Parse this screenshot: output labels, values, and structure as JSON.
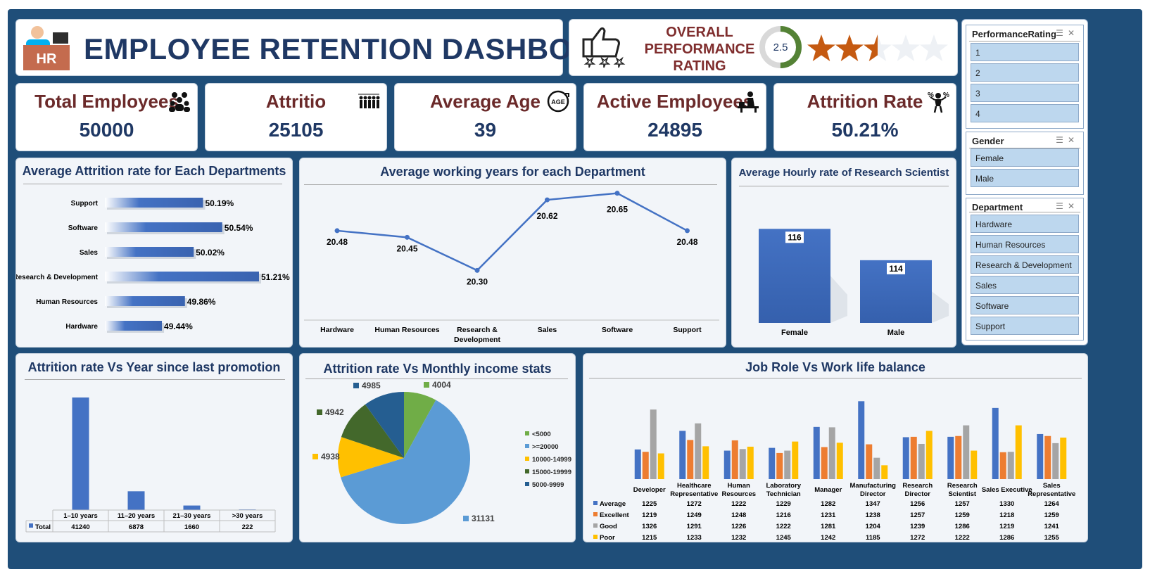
{
  "header": {
    "title": "EMPLOYEE RETENTION DASHBOARD",
    "logo_text": "HR"
  },
  "performance": {
    "title_lines": [
      "OVERALL",
      "PERFORMANCE",
      "RATING"
    ],
    "rating": "2.5",
    "rating_value": 2.5,
    "rating_max": 5,
    "stars_total": 5
  },
  "kpis": [
    {
      "label": "Total Employees",
      "value": "50000",
      "icon": "people-group-icon"
    },
    {
      "label": "Attritio",
      "value": "25105",
      "icon": "people-leaving-icon"
    },
    {
      "label": "Average Age",
      "value": "39",
      "icon": "age-icon"
    },
    {
      "label": "Active Employees",
      "value": "24895",
      "icon": "person-at-desk-icon"
    },
    {
      "label": "Attrition Rate",
      "value": "50.21%",
      "icon": "percentage-person-icon"
    }
  ],
  "slicers": {
    "performance": {
      "title": "PerformanceRating",
      "items": [
        "1",
        "2",
        "3",
        "4"
      ]
    },
    "gender": {
      "title": "Gender",
      "items": [
        "Female",
        "Male"
      ]
    },
    "department": {
      "title": "Department",
      "items": [
        "Hardware",
        "Human Resources",
        "Research & Development",
        "Sales",
        "Software",
        "Support"
      ]
    }
  },
  "colors": {
    "frame": "#1f4e79",
    "accent": "#4472c4",
    "orange": "#ed7d31",
    "gray": "#a5a5a5",
    "yellow": "#ffc000",
    "star": "#c55a11"
  },
  "chart_data": [
    {
      "type": "bar",
      "title": "Average Attrition rate for Each Departments",
      "categories": [
        "Support",
        "Software",
        "Sales",
        "Research & Development",
        "Human Resources",
        "Hardware"
      ],
      "values": [
        50.19,
        50.54,
        50.02,
        51.21,
        49.86,
        49.44
      ],
      "labels": [
        "50.19%",
        "50.54%",
        "50.02%",
        "51.21%",
        "49.86%",
        "49.44%"
      ],
      "orientation": "horizontal",
      "xlim": [
        48.4,
        51.21
      ]
    },
    {
      "type": "line",
      "title": "Average working years for each Department",
      "categories": [
        "Hardware",
        "Human Resources",
        "Research & Development",
        "Sales",
        "Software",
        "Support"
      ],
      "values": [
        20.48,
        20.45,
        20.3,
        20.62,
        20.65,
        20.48
      ],
      "labels": [
        "20.48",
        "20.45",
        "20.30",
        "20.62",
        "20.65",
        "20.48"
      ],
      "ylim": [
        20.25,
        20.7
      ]
    },
    {
      "type": "bar",
      "title": "Average Hourly rate of Research Scientist",
      "categories": [
        "Female",
        "Male"
      ],
      "values": [
        116,
        114
      ],
      "labels": [
        "116",
        "114"
      ],
      "ylim": [
        110,
        117
      ]
    },
    {
      "type": "bar",
      "title": "Attrition rate Vs Year since last promotion",
      "categories": [
        "1–10 years",
        "11–20 years",
        "21–30 years",
        ">30 years"
      ],
      "series": [
        {
          "name": "Total",
          "values": [
            41240,
            6878,
            1660,
            222
          ]
        }
      ],
      "table": true
    },
    {
      "type": "pie",
      "title": "Attrition rate Vs Monthly income stats",
      "slices": [
        {
          "label": "<5000",
          "value": 4004,
          "color": "#70ad47"
        },
        {
          "label": ">=20000",
          "value": 31131,
          "color": "#5b9bd5"
        },
        {
          "label": "10000-14999",
          "value": 4938,
          "color": "#ffc000"
        },
        {
          "label": "15000-19999",
          "value": 4942,
          "color": "#43682b"
        },
        {
          "label": "5000-9999",
          "value": 4985,
          "color": "#255e91"
        }
      ],
      "legend": "right"
    },
    {
      "type": "bar",
      "title": "Job Role Vs Work life balance",
      "categories": [
        "Developer",
        "Healthcare Representative",
        "Human Resources",
        "Laboratory Technician",
        "Manager",
        "Manufacturing Director",
        "Research Director",
        "Research Scientist",
        "Sales Executive",
        "Sales Representative"
      ],
      "series": [
        {
          "name": "Average",
          "color": "#4472c4",
          "values": [
            1225,
            1272,
            1222,
            1229,
            1282,
            1347,
            1256,
            1257,
            1330,
            1264
          ]
        },
        {
          "name": "Excellent",
          "color": "#ed7d31",
          "values": [
            1219,
            1249,
            1248,
            1216,
            1231,
            1238,
            1257,
            1259,
            1218,
            1259
          ]
        },
        {
          "name": "Good",
          "color": "#a5a5a5",
          "values": [
            1326,
            1291,
            1226,
            1222,
            1281,
            1204,
            1239,
            1286,
            1219,
            1241
          ]
        },
        {
          "name": "Poor",
          "color": "#ffc000",
          "values": [
            1215,
            1233,
            1232,
            1245,
            1242,
            1185,
            1272,
            1222,
            1286,
            1255
          ]
        }
      ],
      "ylim": [
        1150,
        1360
      ],
      "table": true
    }
  ]
}
